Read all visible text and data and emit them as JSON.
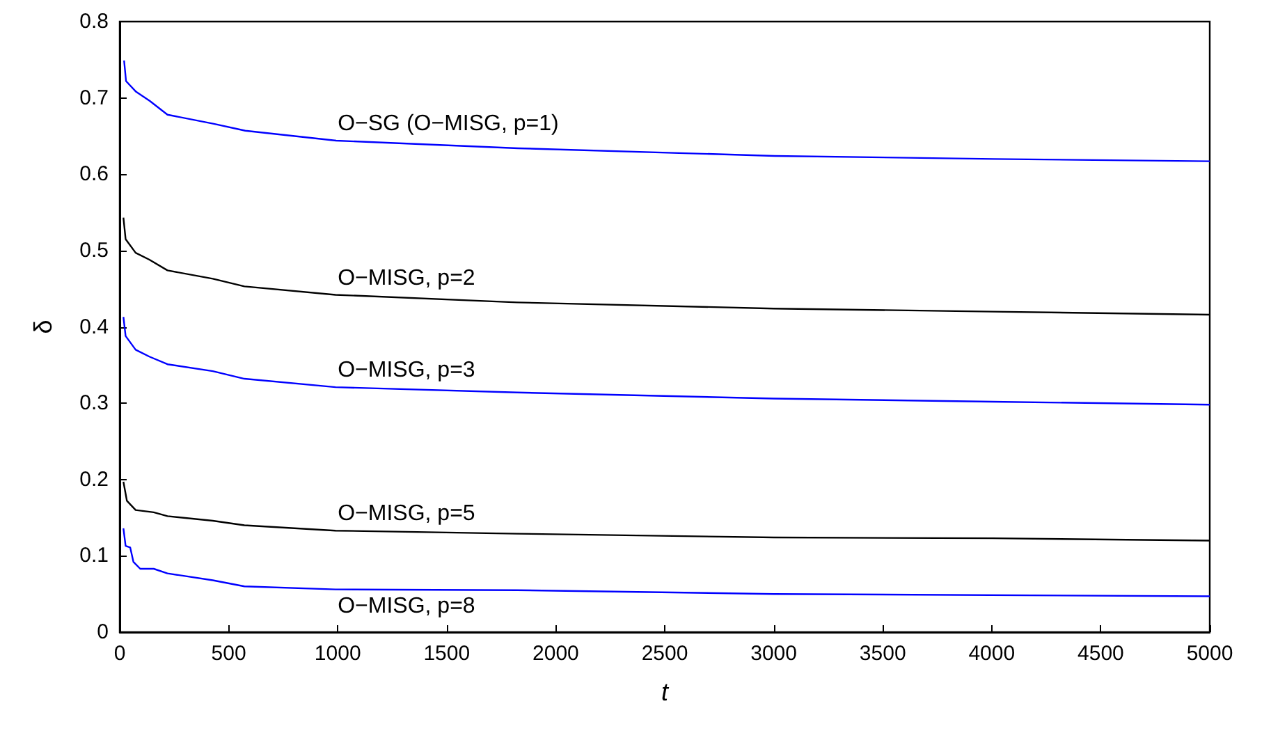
{
  "chart_data": {
    "type": "line",
    "xlabel": "t",
    "ylabel": "δ",
    "xlim": [
      0,
      5000
    ],
    "xticks": [
      0,
      500,
      1000,
      1500,
      2000,
      2500,
      3000,
      3500,
      4000,
      4500,
      5000
    ],
    "ylim": [
      0,
      0.8
    ],
    "yticks": [
      0,
      0.1,
      0.2,
      0.3,
      0.4,
      0.5,
      0.6,
      0.7,
      0.8
    ],
    "grid": false,
    "marker": "none",
    "line_style": "solid",
    "series": [
      {
        "name": "O−SG (O−MISG, p=1)",
        "color": "#0000ff",
        "x": [
          20,
          29,
          75,
          138,
          219,
          432,
          576,
          993,
          1827,
          3004,
          4009,
          5000
        ],
        "values": [
          0.749,
          0.722,
          0.708,
          0.696,
          0.678,
          0.666,
          0.657,
          0.644,
          0.634,
          0.624,
          0.62,
          0.617
        ]
      },
      {
        "name": "O−MISG, p=2",
        "color": "#000000",
        "x": [
          17,
          27,
          73,
          136,
          219,
          427,
          572,
          990,
          1823,
          3000,
          4002,
          5000
        ],
        "values": [
          0.543,
          0.515,
          0.497,
          0.488,
          0.474,
          0.463,
          0.453,
          0.442,
          0.432,
          0.424,
          0.42,
          0.416
        ]
      },
      {
        "name": "O−MISG, p=3",
        "color": "#0000ff",
        "x": [
          17,
          27,
          73,
          136,
          219,
          427,
          572,
          990,
          1823,
          3000,
          4002,
          5000
        ],
        "values": [
          0.413,
          0.388,
          0.37,
          0.361,
          0.351,
          0.342,
          0.332,
          0.321,
          0.314,
          0.306,
          0.302,
          0.298
        ]
      },
      {
        "name": "O−MISG, p=5",
        "color": "#000000",
        "x": [
          17,
          33,
          73,
          156,
          219,
          427,
          572,
          990,
          1823,
          3000,
          4002,
          5000
        ],
        "values": [
          0.197,
          0.172,
          0.16,
          0.157,
          0.152,
          0.146,
          0.14,
          0.133,
          0.129,
          0.124,
          0.123,
          0.12
        ]
      },
      {
        "name": "O−MISG, p=8",
        "color": "#0000ff",
        "x": [
          17,
          27,
          48,
          63,
          94,
          156,
          219,
          427,
          572,
          990,
          1823,
          3000,
          5000
        ],
        "values": [
          0.136,
          0.113,
          0.111,
          0.092,
          0.083,
          0.083,
          0.077,
          0.068,
          0.06,
          0.056,
          0.055,
          0.05,
          0.047
        ]
      }
    ]
  }
}
